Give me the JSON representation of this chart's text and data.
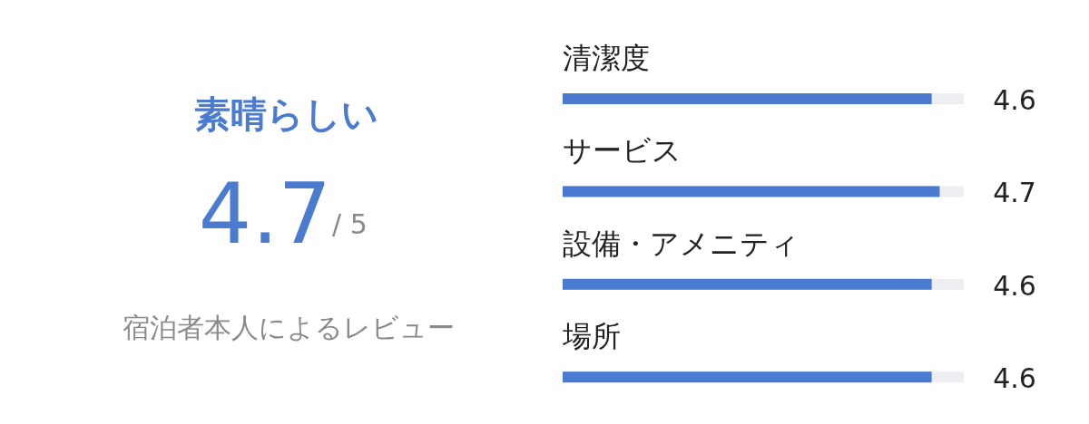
{
  "chart_data": {
    "type": "bar",
    "orientation": "horizontal",
    "categories": [
      "清潔度",
      "サービス",
      "設備・アメニティ",
      "場所"
    ],
    "values": [
      4.6,
      4.7,
      4.6,
      4.6
    ],
    "color": "#4a7bd0",
    "xlim": [
      0,
      5
    ],
    "tick_labels": false,
    "data_labels": true,
    "annotations": [
      "素晴らしい",
      "4.7",
      "/ 5",
      "宿泊者本人によるレビュー"
    ]
  }
}
